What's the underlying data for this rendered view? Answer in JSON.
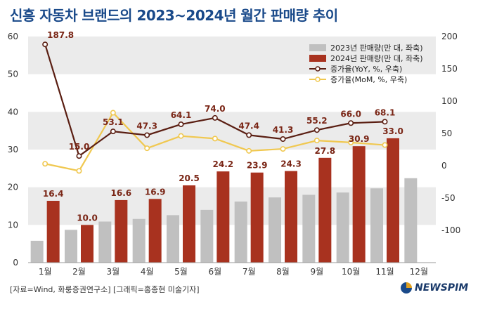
{
  "title": "신흥 자동차 브랜드의 2023~2024년 월간 판매량 추이",
  "source": "[자료=Wind, 화룽증권연구소] [그래픽=홍종현 미술기자]",
  "brand": "NEWSPIM",
  "colors": {
    "bar2023": "#c0c0c0",
    "bar2024": "#a8321f",
    "yoy": "#5a1e12",
    "mom": "#f0c850",
    "band": "#ebebeb",
    "label": "#7a2616",
    "axis": "#333333"
  },
  "chart_data": {
    "type": "bar",
    "categories": [
      "1월",
      "2월",
      "3월",
      "4월",
      "5월",
      "6월",
      "7월",
      "8월",
      "9월",
      "10월",
      "11월",
      "12월"
    ],
    "series": [
      {
        "name": "2023년 판매량(만 대, 좌축)",
        "kind": "bar",
        "axis": "left",
        "values": [
          5.8,
          8.7,
          10.9,
          11.6,
          12.6,
          14.0,
          16.2,
          17.3,
          18.0,
          18.6,
          19.7,
          22.4
        ]
      },
      {
        "name": "2024년 판매량(만 대, 좌축)",
        "kind": "bar",
        "axis": "left",
        "values": [
          16.4,
          10.0,
          16.6,
          16.9,
          20.5,
          24.2,
          23.9,
          24.3,
          27.8,
          30.9,
          33.0,
          null
        ],
        "labels": [
          "16.4",
          "10.0",
          "16.6",
          "16.9",
          "20.5",
          "24.2",
          "23.9",
          "24.3",
          "27.8",
          "30.9",
          "33.0",
          ""
        ]
      },
      {
        "name": "증가율(YoY, %, 우축)",
        "kind": "line",
        "axis": "right",
        "values": [
          187.8,
          15.0,
          53.1,
          47.3,
          64.1,
          74.0,
          47.4,
          41.3,
          55.2,
          66.0,
          68.1,
          null
        ],
        "labels": [
          "187.8",
          "15.0",
          "53.1",
          "47.3",
          "64.1",
          "74.0",
          "47.4",
          "41.3",
          "55.2",
          "66.0",
          "68.1",
          ""
        ]
      },
      {
        "name": "증가율(MoM, %, 우축)",
        "kind": "line",
        "axis": "right",
        "values": [
          3,
          -8,
          82,
          27,
          46,
          42,
          23,
          26,
          39,
          36,
          32,
          null
        ]
      }
    ],
    "y_left": {
      "min": 0,
      "max": 60,
      "ticks": [
        "0",
        "10",
        "20",
        "30",
        "40",
        "50",
        "60"
      ],
      "tick_values": [
        0,
        10,
        20,
        30,
        40,
        50,
        60
      ]
    },
    "y_right": {
      "min": -150,
      "max": 200,
      "ticks": [
        "-100",
        "-50",
        "0",
        "50",
        "100",
        "150",
        "200"
      ],
      "tick_values": [
        -100,
        -50,
        0,
        50,
        100,
        150,
        200
      ]
    },
    "legend_position": "top-right",
    "grid": "alternating horizontal bands"
  }
}
